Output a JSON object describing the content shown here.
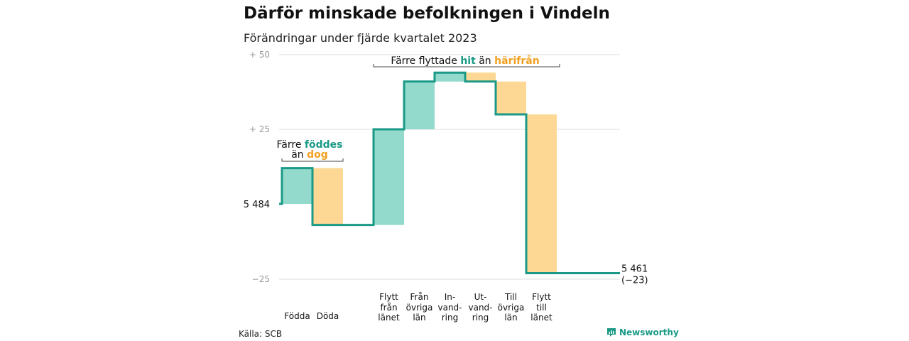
{
  "title": "Därför minskade befolkningen i Vindeln",
  "subtitle": "Förändringar under fjärde kvartalet 2023",
  "source": "Källa: SCB",
  "brand": "Newsworthy",
  "colors": {
    "teal": "#93d9cc",
    "orange": "#fcd894",
    "line": "#1a9a86",
    "teal_text": "#1a9a86",
    "orange_text": "#f0a020",
    "grid": "#dddddd"
  },
  "annotations": {
    "births": {
      "prefix": "Färre",
      "highlight1": "föddes",
      "line2_prefix": "än",
      "highlight2": "dog"
    },
    "migration": {
      "prefix": "Färre flyttade",
      "highlight1": "hit",
      "middle": "än",
      "highlight2": "härifrån"
    }
  },
  "chart_data": {
    "type": "waterfall",
    "title": "Därför minskade befolkningen i Vindeln",
    "subtitle": "Förändringar under fjärde kvartalet 2023",
    "start_value": 5484,
    "start_label": "5 484",
    "end_value": 5461,
    "end_label": "5 461",
    "end_change_label": "(−23)",
    "ylim": [
      -25,
      50
    ],
    "yticks": [
      -25,
      25,
      50
    ],
    "ytick_labels": [
      "−25",
      "+ 25",
      "+ 50"
    ],
    "grid": true,
    "categories": [
      "Födda",
      "Döda",
      "Flytt från länet",
      "Från övriga län",
      "In-vand-ring",
      "Ut-vand-ring",
      "Till övriga län",
      "Flytt till länet"
    ],
    "category_labels": [
      [
        "",
        "",
        "",
        "Födda"
      ],
      [
        "",
        "",
        "",
        "Döda"
      ],
      [
        "Flytt",
        "från",
        "länet",
        ""
      ],
      [
        "Från",
        "övriga",
        "län",
        ""
      ],
      [
        "In-",
        "vand-",
        "ring",
        ""
      ],
      [
        "Ut-",
        "vand-",
        "ring",
        ""
      ],
      [
        "Till",
        "övriga",
        "län",
        ""
      ],
      [
        "Flytt",
        "till",
        "länet",
        ""
      ]
    ],
    "values": [
      12,
      -19,
      32,
      16,
      3,
      -3,
      -11,
      -53
    ],
    "kinds": [
      "in",
      "out",
      "in",
      "in",
      "in",
      "out",
      "out",
      "out"
    ]
  }
}
